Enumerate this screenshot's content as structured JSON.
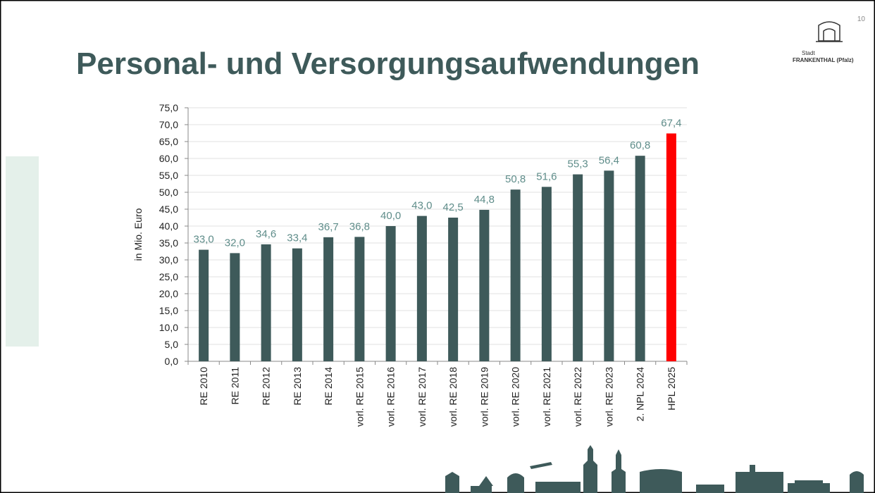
{
  "slide_number": "10",
  "logo": {
    "line1": "Stadt",
    "line2": "FRANKENTHAL (Pfalz)"
  },
  "chart_data": {
    "type": "bar",
    "title": "Personal- und Versorgungsaufwendungen",
    "y_label": "in Mio. Euro",
    "categories": [
      "RE 2010",
      "RE 2011",
      "RE 2012",
      "RE 2013",
      "RE 2014",
      "vorl. RE 2015",
      "vorl. RE 2016",
      "vorl. RE 2017",
      "vorl. RE 2018",
      "vorl. RE 2019",
      "vorl. RE 2020",
      "vorl. RE 2021",
      "vorl. RE 2022",
      "vorl. RE 2023",
      "2. NPL 2024",
      "HPL 2025"
    ],
    "values": [
      33.0,
      32.0,
      34.6,
      33.4,
      36.7,
      36.8,
      40.0,
      43.0,
      42.5,
      44.8,
      50.8,
      51.6,
      55.3,
      56.4,
      60.8,
      67.4
    ],
    "value_labels": [
      "33,0",
      "32,0",
      "34,6",
      "33,4",
      "36,7",
      "36,8",
      "40,0",
      "43,0",
      "42,5",
      "44,8",
      "50,8",
      "51,6",
      "55,3",
      "56,4",
      "60,8",
      "67,4"
    ],
    "colors": [
      "#3e5a5a",
      "#3e5a5a",
      "#3e5a5a",
      "#3e5a5a",
      "#3e5a5a",
      "#3e5a5a",
      "#3e5a5a",
      "#3e5a5a",
      "#3e5a5a",
      "#3e5a5a",
      "#3e5a5a",
      "#3e5a5a",
      "#3e5a5a",
      "#3e5a5a",
      "#3e5a5a",
      "#ff0000"
    ],
    "ylim": [
      0,
      75
    ],
    "yticks": [
      {
        "value": 0,
        "label": "0,0"
      },
      {
        "value": 5,
        "label": "5,0"
      },
      {
        "value": 10,
        "label": "10,0"
      },
      {
        "value": 15,
        "label": "15,0"
      },
      {
        "value": 20,
        "label": "20,0"
      },
      {
        "value": 25,
        "label": "25,0"
      },
      {
        "value": 30,
        "label": "30,0"
      },
      {
        "value": 35,
        "label": "35,0"
      },
      {
        "value": 40,
        "label": "40,0"
      },
      {
        "value": 45,
        "label": "45,0"
      },
      {
        "value": 50,
        "label": "50,0"
      },
      {
        "value": 55,
        "label": "55,0"
      },
      {
        "value": 60,
        "label": "60,0"
      },
      {
        "value": 65,
        "label": "65,0"
      },
      {
        "value": 70,
        "label": "70,0"
      },
      {
        "value": 75,
        "label": "75,0"
      }
    ],
    "grid": true
  }
}
